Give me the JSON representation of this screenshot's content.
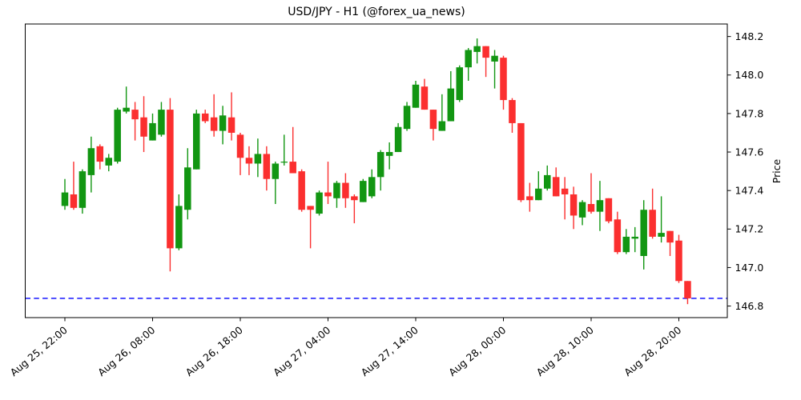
{
  "title": "USD/JPY - H1 (@forex_ua_news)",
  "chart_data": {
    "type": "candlestick",
    "symbol": "USD/JPY",
    "timeframe": "H1",
    "source_handle": "@forex_ua_news",
    "ylabel": "Price",
    "grid": false,
    "ylim": [
      146.74,
      148.265
    ],
    "yticks": [
      146.8,
      147.0,
      147.2,
      147.4,
      147.6,
      147.8,
      148.0,
      148.2
    ],
    "xtick_indices": [
      0,
      10,
      20,
      30,
      40,
      50,
      60,
      70
    ],
    "xtick_labels": [
      "Aug 25, 22:00",
      "Aug 26, 08:00",
      "Aug 26, 18:00",
      "Aug 27, 04:00",
      "Aug 27, 14:00",
      "Aug 28, 00:00",
      "Aug 28, 10:00",
      "Aug 28, 20:00"
    ],
    "hline": {
      "price": 146.84,
      "color": "#0000ff",
      "style": "dashed"
    },
    "colors": {
      "up": "#129612",
      "down": "#fb2f2f",
      "axis": "#000000"
    },
    "candles": [
      {
        "t": "Aug 25, 22:00",
        "o": 147.32,
        "h": 147.46,
        "l": 147.3,
        "c": 147.39
      },
      {
        "t": "Aug 25, 23:00",
        "o": 147.38,
        "h": 147.55,
        "l": 147.3,
        "c": 147.31
      },
      {
        "t": "Aug 26, 00:00",
        "o": 147.31,
        "h": 147.51,
        "l": 147.28,
        "c": 147.5
      },
      {
        "t": "Aug 26, 01:00",
        "o": 147.48,
        "h": 147.68,
        "l": 147.39,
        "c": 147.62
      },
      {
        "t": "Aug 26, 02:00",
        "o": 147.63,
        "h": 147.64,
        "l": 147.51,
        "c": 147.55
      },
      {
        "t": "Aug 26, 03:00",
        "o": 147.53,
        "h": 147.59,
        "l": 147.5,
        "c": 147.57
      },
      {
        "t": "Aug 26, 04:00",
        "o": 147.55,
        "h": 147.83,
        "l": 147.54,
        "c": 147.82
      },
      {
        "t": "Aug 26, 05:00",
        "o": 147.81,
        "h": 147.94,
        "l": 147.8,
        "c": 147.83
      },
      {
        "t": "Aug 26, 06:00",
        "o": 147.82,
        "h": 147.86,
        "l": 147.66,
        "c": 147.77
      },
      {
        "t": "Aug 26, 07:00",
        "o": 147.78,
        "h": 147.89,
        "l": 147.6,
        "c": 147.68
      },
      {
        "t": "Aug 26, 08:00",
        "o": 147.66,
        "h": 147.8,
        "l": 147.66,
        "c": 147.75
      },
      {
        "t": "Aug 26, 09:00",
        "o": 147.69,
        "h": 147.86,
        "l": 147.68,
        "c": 147.82
      },
      {
        "t": "Aug 26, 10:00",
        "o": 147.82,
        "h": 147.88,
        "l": 146.98,
        "c": 147.1
      },
      {
        "t": "Aug 26, 11:00",
        "o": 147.1,
        "h": 147.38,
        "l": 147.09,
        "c": 147.32
      },
      {
        "t": "Aug 26, 12:00",
        "o": 147.3,
        "h": 147.62,
        "l": 147.25,
        "c": 147.52
      },
      {
        "t": "Aug 26, 13:00",
        "o": 147.51,
        "h": 147.82,
        "l": 147.51,
        "c": 147.8
      },
      {
        "t": "Aug 26, 14:00",
        "o": 147.8,
        "h": 147.82,
        "l": 147.75,
        "c": 147.76
      },
      {
        "t": "Aug 26, 15:00",
        "o": 147.78,
        "h": 147.9,
        "l": 147.68,
        "c": 147.71
      },
      {
        "t": "Aug 26, 16:00",
        "o": 147.71,
        "h": 147.84,
        "l": 147.64,
        "c": 147.79
      },
      {
        "t": "Aug 26, 17:00",
        "o": 147.78,
        "h": 147.91,
        "l": 147.66,
        "c": 147.7
      },
      {
        "t": "Aug 26, 18:00",
        "o": 147.69,
        "h": 147.7,
        "l": 147.48,
        "c": 147.57
      },
      {
        "t": "Aug 26, 19:00",
        "o": 147.57,
        "h": 147.63,
        "l": 147.48,
        "c": 147.54
      },
      {
        "t": "Aug 26, 20:00",
        "o": 147.54,
        "h": 147.67,
        "l": 147.47,
        "c": 147.59
      },
      {
        "t": "Aug 26, 21:00",
        "o": 147.59,
        "h": 147.63,
        "l": 147.4,
        "c": 147.46
      },
      {
        "t": "Aug 26, 22:00",
        "o": 147.46,
        "h": 147.55,
        "l": 147.33,
        "c": 147.54
      },
      {
        "t": "Aug 26, 23:00",
        "o": 147.55,
        "h": 147.69,
        "l": 147.53,
        "c": 147.55
      },
      {
        "t": "Aug 27, 00:00",
        "o": 147.55,
        "h": 147.73,
        "l": 147.49,
        "c": 147.49
      },
      {
        "t": "Aug 27, 01:00",
        "o": 147.5,
        "h": 147.51,
        "l": 147.29,
        "c": 147.3
      },
      {
        "t": "Aug 27, 02:00",
        "o": 147.32,
        "h": 147.32,
        "l": 147.1,
        "c": 147.3
      },
      {
        "t": "Aug 27, 03:00",
        "o": 147.28,
        "h": 147.4,
        "l": 147.27,
        "c": 147.39
      },
      {
        "t": "Aug 27, 04:00",
        "o": 147.39,
        "h": 147.55,
        "l": 147.33,
        "c": 147.37
      },
      {
        "t": "Aug 27, 05:00",
        "o": 147.36,
        "h": 147.45,
        "l": 147.31,
        "c": 147.44
      },
      {
        "t": "Aug 27, 06:00",
        "o": 147.44,
        "h": 147.49,
        "l": 147.31,
        "c": 147.36
      },
      {
        "t": "Aug 27, 07:00",
        "o": 147.37,
        "h": 147.38,
        "l": 147.23,
        "c": 147.35
      },
      {
        "t": "Aug 27, 08:00",
        "o": 147.34,
        "h": 147.46,
        "l": 147.34,
        "c": 147.45
      },
      {
        "t": "Aug 27, 09:00",
        "o": 147.37,
        "h": 147.51,
        "l": 147.36,
        "c": 147.47
      },
      {
        "t": "Aug 27, 10:00",
        "o": 147.47,
        "h": 147.61,
        "l": 147.4,
        "c": 147.6
      },
      {
        "t": "Aug 27, 11:00",
        "o": 147.58,
        "h": 147.65,
        "l": 147.51,
        "c": 147.6
      },
      {
        "t": "Aug 27, 12:00",
        "o": 147.6,
        "h": 147.75,
        "l": 147.6,
        "c": 147.73
      },
      {
        "t": "Aug 27, 13:00",
        "o": 147.72,
        "h": 147.86,
        "l": 147.71,
        "c": 147.84
      },
      {
        "t": "Aug 27, 14:00",
        "o": 147.83,
        "h": 147.97,
        "l": 147.83,
        "c": 147.95
      },
      {
        "t": "Aug 27, 15:00",
        "o": 147.94,
        "h": 147.98,
        "l": 147.82,
        "c": 147.82
      },
      {
        "t": "Aug 27, 16:00",
        "o": 147.82,
        "h": 147.82,
        "l": 147.66,
        "c": 147.72
      },
      {
        "t": "Aug 27, 17:00",
        "o": 147.71,
        "h": 147.9,
        "l": 147.71,
        "c": 147.76
      },
      {
        "t": "Aug 27, 18:00",
        "o": 147.76,
        "h": 148.02,
        "l": 147.76,
        "c": 147.93
      },
      {
        "t": "Aug 27, 19:00",
        "o": 147.87,
        "h": 148.05,
        "l": 147.86,
        "c": 148.04
      },
      {
        "t": "Aug 27, 20:00",
        "o": 148.04,
        "h": 148.14,
        "l": 147.97,
        "c": 148.13
      },
      {
        "t": "Aug 27, 21:00",
        "o": 148.12,
        "h": 148.19,
        "l": 148.06,
        "c": 148.15
      },
      {
        "t": "Aug 27, 22:00",
        "o": 148.15,
        "h": 148.15,
        "l": 147.99,
        "c": 148.09
      },
      {
        "t": "Aug 27, 23:00",
        "o": 148.07,
        "h": 148.13,
        "l": 147.93,
        "c": 148.1
      },
      {
        "t": "Aug 28, 00:00",
        "o": 148.09,
        "h": 148.1,
        "l": 147.82,
        "c": 147.87
      },
      {
        "t": "Aug 28, 01:00",
        "o": 147.87,
        "h": 147.88,
        "l": 147.7,
        "c": 147.75
      },
      {
        "t": "Aug 28, 02:00",
        "o": 147.75,
        "h": 147.75,
        "l": 147.34,
        "c": 147.35
      },
      {
        "t": "Aug 28, 03:00",
        "o": 147.37,
        "h": 147.44,
        "l": 147.29,
        "c": 147.35
      },
      {
        "t": "Aug 28, 04:00",
        "o": 147.35,
        "h": 147.5,
        "l": 147.35,
        "c": 147.41
      },
      {
        "t": "Aug 28, 05:00",
        "o": 147.41,
        "h": 147.53,
        "l": 147.4,
        "c": 147.48
      },
      {
        "t": "Aug 28, 06:00",
        "o": 147.47,
        "h": 147.52,
        "l": 147.37,
        "c": 147.37
      },
      {
        "t": "Aug 28, 07:00",
        "o": 147.41,
        "h": 147.47,
        "l": 147.25,
        "c": 147.38
      },
      {
        "t": "Aug 28, 08:00",
        "o": 147.38,
        "h": 147.42,
        "l": 147.2,
        "c": 147.27
      },
      {
        "t": "Aug 28, 09:00",
        "o": 147.26,
        "h": 147.35,
        "l": 147.22,
        "c": 147.34
      },
      {
        "t": "Aug 28, 10:00",
        "o": 147.33,
        "h": 147.49,
        "l": 147.28,
        "c": 147.29
      },
      {
        "t": "Aug 28, 11:00",
        "o": 147.29,
        "h": 147.45,
        "l": 147.19,
        "c": 147.35
      },
      {
        "t": "Aug 28, 12:00",
        "o": 147.36,
        "h": 147.36,
        "l": 147.23,
        "c": 147.24
      },
      {
        "t": "Aug 28, 13:00",
        "o": 147.25,
        "h": 147.29,
        "l": 147.07,
        "c": 147.08
      },
      {
        "t": "Aug 28, 14:00",
        "o": 147.08,
        "h": 147.2,
        "l": 147.07,
        "c": 147.16
      },
      {
        "t": "Aug 28, 15:00",
        "o": 147.15,
        "h": 147.21,
        "l": 147.08,
        "c": 147.16
      },
      {
        "t": "Aug 28, 16:00",
        "o": 147.06,
        "h": 147.35,
        "l": 146.99,
        "c": 147.3
      },
      {
        "t": "Aug 28, 17:00",
        "o": 147.3,
        "h": 147.41,
        "l": 147.15,
        "c": 147.16
      },
      {
        "t": "Aug 28, 18:00",
        "o": 147.16,
        "h": 147.37,
        "l": 147.13,
        "c": 147.18
      },
      {
        "t": "Aug 28, 19:00",
        "o": 147.19,
        "h": 147.19,
        "l": 147.06,
        "c": 147.13
      },
      {
        "t": "Aug 28, 20:00",
        "o": 147.14,
        "h": 147.17,
        "l": 146.92,
        "c": 146.93
      },
      {
        "t": "Aug 28, 21:00",
        "o": 146.93,
        "h": 146.93,
        "l": 146.81,
        "c": 146.84
      }
    ]
  }
}
